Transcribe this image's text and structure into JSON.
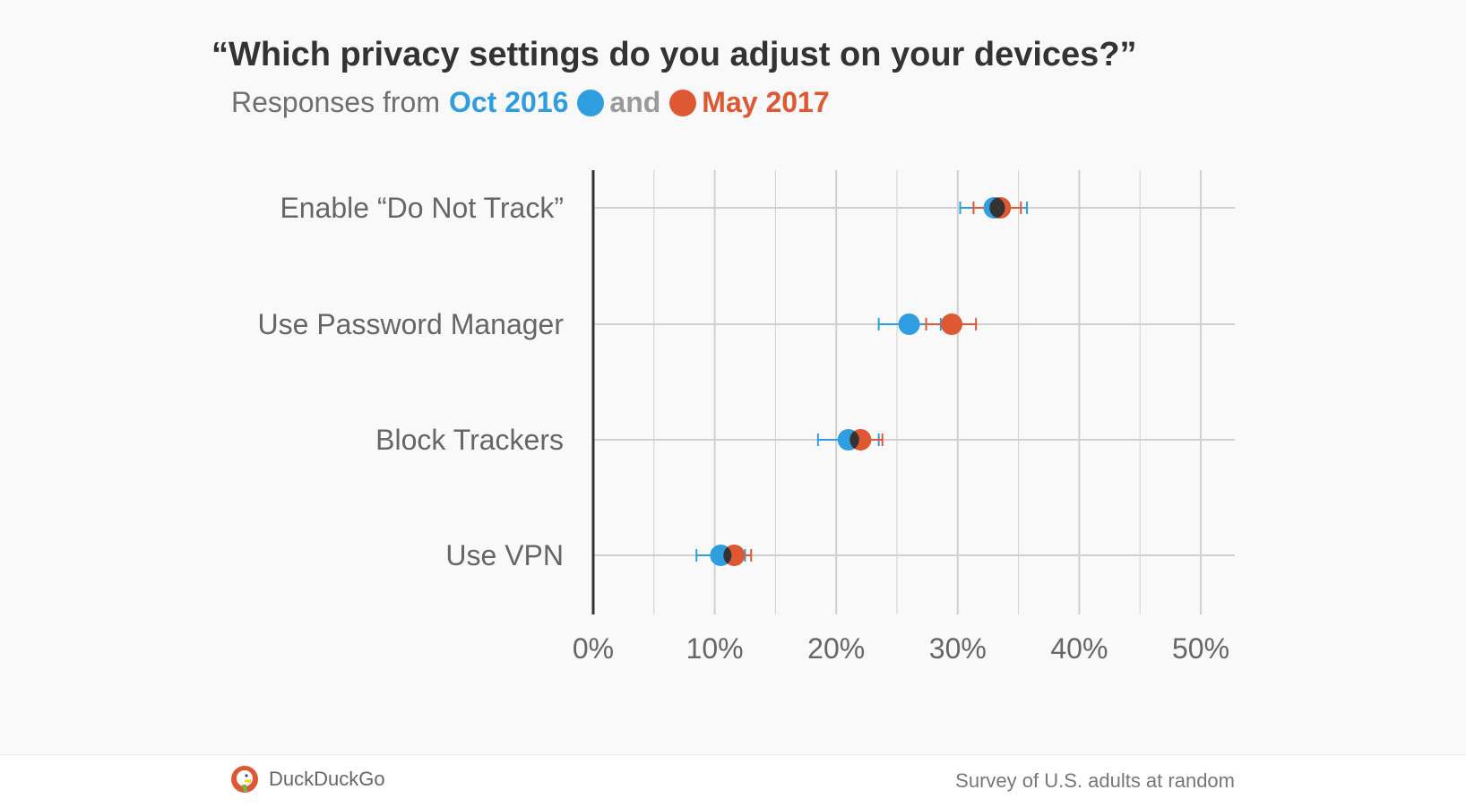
{
  "header": {
    "title": "“Which privacy settings do you adjust on your devices?”",
    "subtitle_prefix": "Responses from",
    "series_a_label": "Oct 2016",
    "joiner": "and",
    "series_b_label": "May 2017"
  },
  "colors": {
    "oct_2016": "#2f9ee0",
    "may_2017": "#de5833",
    "overlap": "#333333",
    "grid": "#d0d0d0",
    "axis": "#333333"
  },
  "chart_data": {
    "type": "scatter",
    "subtype": "dot plot with error bars",
    "categories": [
      "Enable “Do Not Track”",
      "Use Password Manager",
      "Block Trackers",
      "Use VPN"
    ],
    "x_ticks": [
      "0%",
      "10%",
      "20%",
      "30%",
      "40%",
      "50%"
    ],
    "xlim": [
      0,
      53
    ],
    "grid": true,
    "series": [
      {
        "name": "Oct 2016",
        "values": [
          33.0,
          26.0,
          21.0,
          10.5
        ],
        "error_low": [
          30.2,
          23.5,
          18.5,
          8.5
        ],
        "error_high": [
          35.7,
          28.6,
          23.5,
          12.5
        ]
      },
      {
        "name": "May 2017",
        "values": [
          33.5,
          29.5,
          22.0,
          11.6
        ],
        "error_low": [
          31.3,
          27.4,
          20.5,
          9.8
        ],
        "error_high": [
          35.2,
          31.5,
          23.8,
          13.0
        ]
      }
    ]
  },
  "footer": {
    "brand": "DuckDuckGo",
    "note": "Survey of U.S. adults at random"
  }
}
